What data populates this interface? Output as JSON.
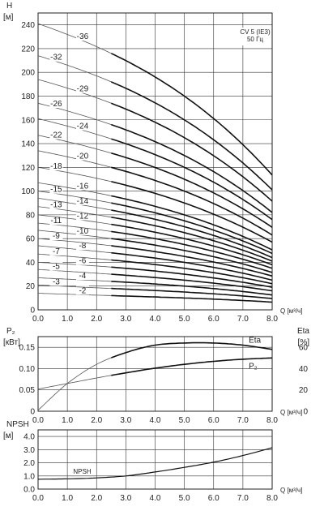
{
  "chart_data": [
    {
      "type": "line",
      "panel": "head",
      "ylabel": "H",
      "yunit": "[м]",
      "xlabel": "Q [м³/ч]",
      "xlim": [
        0,
        8
      ],
      "ylim": [
        0,
        250
      ],
      "xticks": [
        "0.0",
        "1.0",
        "2.0",
        "3.0",
        "4.0",
        "5.0",
        "6.0",
        "7.0",
        "8.0"
      ],
      "yticks": [
        "0",
        "20",
        "40",
        "60",
        "80",
        "100",
        "120",
        "140",
        "160",
        "180",
        "200",
        "220",
        "240"
      ],
      "grid": true,
      "annotation": [
        "CV 5 (IE3)",
        "50 Гц"
      ],
      "series": [
        {
          "name": "-2",
          "x": [
            0,
            2.5,
            5,
            8
          ],
          "y": [
            14.0,
            12.0,
            10.0,
            6.5
          ]
        },
        {
          "name": "-3",
          "x": [
            0,
            2.5,
            5,
            8
          ],
          "y": [
            21.0,
            18.0,
            15.0,
            9.5
          ]
        },
        {
          "name": "-4",
          "x": [
            0,
            2.5,
            5,
            8
          ],
          "y": [
            27.0,
            24.0,
            20.0,
            12.5
          ]
        },
        {
          "name": "-5",
          "x": [
            0,
            2.5,
            5,
            8
          ],
          "y": [
            34.0,
            30.0,
            25.0,
            16.0
          ]
        },
        {
          "name": "-6",
          "x": [
            0,
            2.5,
            5,
            8
          ],
          "y": [
            40.0,
            36.0,
            30.0,
            19.0
          ]
        },
        {
          "name": "-7",
          "x": [
            0,
            2.5,
            5,
            8
          ],
          "y": [
            47.0,
            42.0,
            35.0,
            22.0
          ]
        },
        {
          "name": "-8",
          "x": [
            0,
            2.5,
            5,
            8
          ],
          "y": [
            54.0,
            48.0,
            40.0,
            25.0
          ]
        },
        {
          "name": "-9",
          "x": [
            0,
            2.5,
            5,
            8
          ],
          "y": [
            60.0,
            54.0,
            45.0,
            28.5
          ]
        },
        {
          "name": "-10",
          "x": [
            0,
            2.5,
            5,
            8
          ],
          "y": [
            67.0,
            60.0,
            50.0,
            31.5
          ]
        },
        {
          "name": "-11",
          "x": [
            0,
            2.5,
            5,
            8
          ],
          "y": [
            73.0,
            66.0,
            55.0,
            35.0
          ]
        },
        {
          "name": "-12",
          "x": [
            0,
            2.5,
            5,
            8
          ],
          "y": [
            80.0,
            72.0,
            60.0,
            38.0
          ]
        },
        {
          "name": "-13",
          "x": [
            0,
            2.5,
            5,
            8
          ],
          "y": [
            87.0,
            78.0,
            65.0,
            41.0
          ]
        },
        {
          "name": "-14",
          "x": [
            0,
            2.5,
            5,
            8
          ],
          "y": [
            94.0,
            84.0,
            70.0,
            44.0
          ]
        },
        {
          "name": "-15",
          "x": [
            0,
            2.5,
            5,
            8
          ],
          "y": [
            100.0,
            90.0,
            75.0,
            47.5
          ]
        },
        {
          "name": "-16",
          "x": [
            0,
            2.5,
            5,
            8
          ],
          "y": [
            107.0,
            96.0,
            80.0,
            50.5
          ]
        },
        {
          "name": "-18",
          "x": [
            0,
            2.5,
            5,
            8
          ],
          "y": [
            120.0,
            108.0,
            90.0,
            57.0
          ]
        },
        {
          "name": "-20",
          "x": [
            0,
            2.5,
            5,
            8
          ],
          "y": [
            134.0,
            120.0,
            100.0,
            63.0
          ]
        },
        {
          "name": "-22",
          "x": [
            0,
            2.5,
            5,
            8
          ],
          "y": [
            147.0,
            132.0,
            110.0,
            69.5
          ]
        },
        {
          "name": "-24",
          "x": [
            0,
            2.5,
            5,
            8
          ],
          "y": [
            161.0,
            144.0,
            120.0,
            76.0
          ]
        },
        {
          "name": "-26",
          "x": [
            0,
            2.5,
            5,
            8
          ],
          "y": [
            174.0,
            156.0,
            130.0,
            82.0
          ]
        },
        {
          "name": "-29",
          "x": [
            0,
            2.5,
            5,
            8
          ],
          "y": [
            194.0,
            174.0,
            145.0,
            91.5
          ]
        },
        {
          "name": "-32",
          "x": [
            0,
            2.5,
            5,
            8
          ],
          "y": [
            214.0,
            192.0,
            160.0,
            101.0
          ]
        },
        {
          "name": "-36",
          "x": [
            0,
            2.5,
            5,
            8
          ],
          "y": [
            241.0,
            216.0,
            180.0,
            113.5
          ]
        }
      ]
    },
    {
      "type": "line",
      "panel": "power",
      "ylabel": "P₂",
      "yunit": "[кВт]",
      "y2label": "Eta",
      "y2unit": "[%]",
      "xlabel": "Q [м³/ч]",
      "xlim": [
        0,
        8
      ],
      "ylim": [
        0,
        0.175
      ],
      "y2lim": [
        0,
        70
      ],
      "xticks": [
        "0.0",
        "1.0",
        "2.0",
        "3.0",
        "4.0",
        "5.0",
        "6.0",
        "7.0",
        "8.0"
      ],
      "yticks": [
        "0",
        "0.05",
        "0.10",
        "0.15"
      ],
      "y2ticks": [
        "0",
        "20",
        "40",
        "60"
      ],
      "grid": true,
      "series": [
        {
          "name": "Eta",
          "axis": "right",
          "x": [
            0,
            1,
            2,
            3,
            4,
            5,
            6,
            7,
            8
          ],
          "y": [
            1,
            26,
            44,
            55,
            62,
            64,
            64,
            62,
            58
          ]
        },
        {
          "name": "P₂",
          "axis": "left",
          "x": [
            0,
            1,
            2,
            3,
            4,
            5,
            6,
            7,
            8
          ],
          "y": [
            0.052,
            0.065,
            0.078,
            0.09,
            0.101,
            0.11,
            0.117,
            0.122,
            0.125
          ]
        }
      ]
    },
    {
      "type": "line",
      "panel": "npsh",
      "ylabel": "NPSH",
      "yunit": "[м]",
      "xlabel": "Q [м³/ч]",
      "xlim": [
        0,
        8
      ],
      "ylim": [
        0,
        4.5
      ],
      "xticks": [
        "0.0",
        "1.0",
        "2.0",
        "3.0",
        "4.0",
        "5.0",
        "6.0",
        "7.0",
        "8.0"
      ],
      "yticks": [
        "0.0",
        "1.0",
        "2.0",
        "3.0",
        "4.0"
      ],
      "grid": true,
      "series": [
        {
          "name": "NPSH",
          "x": [
            0,
            1,
            2,
            3,
            4,
            5,
            6,
            7,
            8
          ],
          "y": [
            0.75,
            0.78,
            0.85,
            1.0,
            1.3,
            1.65,
            2.05,
            2.55,
            3.15
          ]
        }
      ]
    }
  ]
}
